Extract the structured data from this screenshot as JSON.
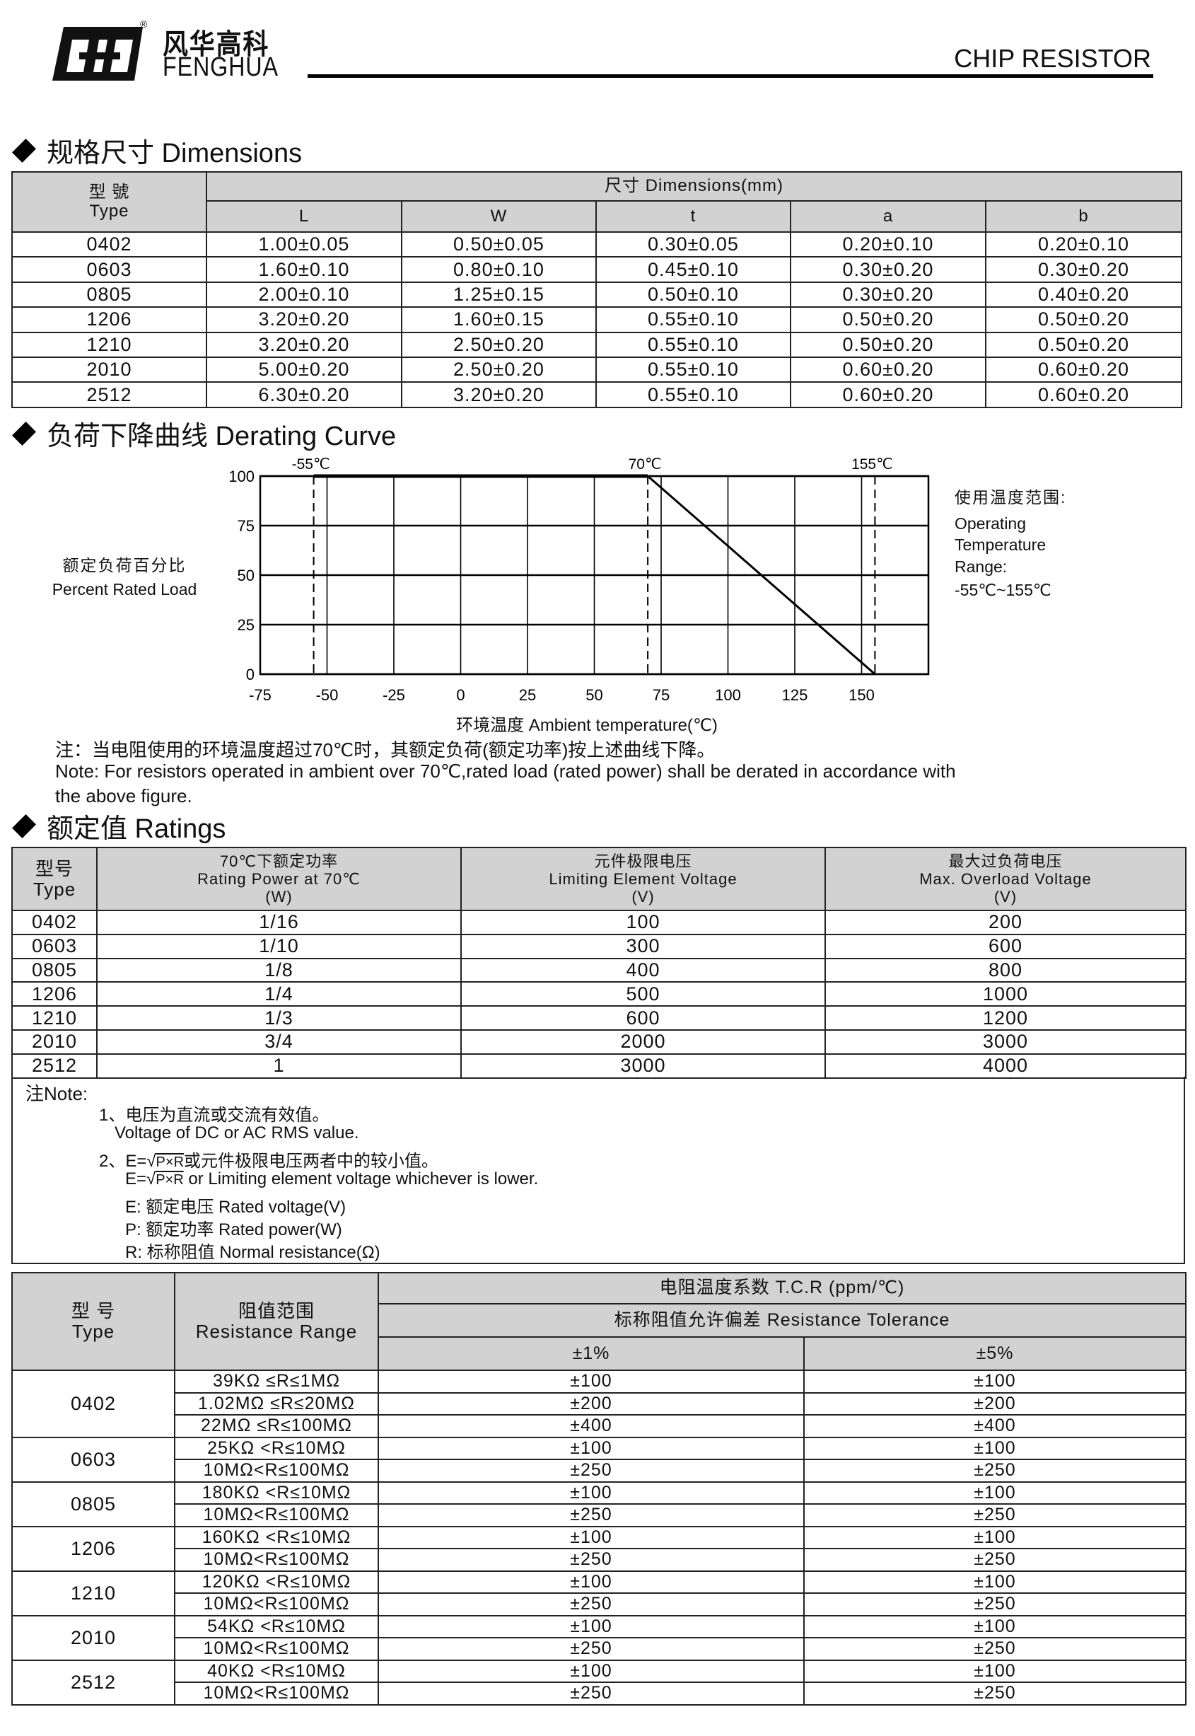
{
  "header": {
    "logo_cn": "风华高科",
    "logo_en": "FENGHUA",
    "logo_mark": "®",
    "title": "CHIP RESISTOR"
  },
  "dimensions": {
    "heading": "规格尺寸 Dimensions",
    "type_header_cn": "型 號",
    "type_header_en": "Type",
    "group_header": "尺寸 Dimensions(mm)",
    "columns": [
      "L",
      "W",
      "t",
      "a",
      "b"
    ],
    "rows": [
      [
        "0402",
        "1.00±0.05",
        "0.50±0.05",
        "0.30±0.05",
        "0.20±0.10",
        "0.20±0.10"
      ],
      [
        "0603",
        "1.60±0.10",
        "0.80±0.10",
        "0.45±0.10",
        "0.30±0.20",
        "0.30±0.20"
      ],
      [
        "0805",
        "2.00±0.10",
        "1.25±0.15",
        "0.50±0.10",
        "0.30±0.20",
        "0.40±0.20"
      ],
      [
        "1206",
        "3.20±0.20",
        "1.60±0.15",
        "0.55±0.10",
        "0.50±0.20",
        "0.50±0.20"
      ],
      [
        "1210",
        "3.20±0.20",
        "2.50±0.20",
        "0.55±0.10",
        "0.50±0.20",
        "0.50±0.20"
      ],
      [
        "2010",
        "5.00±0.20",
        "2.50±0.20",
        "0.55±0.10",
        "0.60±0.20",
        "0.60±0.20"
      ],
      [
        "2512",
        "6.30±0.20",
        "3.20±0.20",
        "0.55±0.10",
        "0.60±0.20",
        "0.60±0.20"
      ]
    ]
  },
  "derating": {
    "heading": "负荷下降曲线 Derating Curve",
    "ylabel_cn": "额定负荷百分比",
    "ylabel_en": "Percent Rated Load",
    "xlabel": "环境温度  Ambient temperature(℃)",
    "range_title": "使用温度范围:",
    "range_lines": [
      "Operating",
      "Temperature",
      "Range:"
    ],
    "range_value": "-55℃~155℃",
    "note_cn": "注：当电阻使用的环境温度超过70℃时，其额定负荷(额定功率)按上述曲线下降。",
    "note_en_1": "Note: For resistors operated in ambient over 70℃,rated  load (rated power) shall be derated in accordance with",
    "note_en_2": "the above figure."
  },
  "chart_data": {
    "type": "line",
    "xlabel": "环境温度  Ambient temperature(℃)",
    "ylabel": "额定负荷百分比 Percent Rated Load",
    "xlim": [
      -75,
      175
    ],
    "ylim": [
      0,
      100
    ],
    "x_ticks": [
      -75,
      -50,
      -25,
      0,
      25,
      50,
      75,
      100,
      125,
      150
    ],
    "y_ticks": [
      0,
      25,
      50,
      75,
      100
    ],
    "grid": true,
    "series": [
      {
        "x": [
          -55,
          70,
          155
        ],
        "y": [
          100,
          100,
          0
        ]
      }
    ],
    "markers": [
      {
        "x": -55,
        "label": "-55℃"
      },
      {
        "x": 70,
        "label": "70℃"
      },
      {
        "x": 155,
        "label": "155℃"
      }
    ]
  },
  "ratings": {
    "heading": "额定值  Ratings",
    "headers": [
      [
        "型号",
        "Type"
      ],
      [
        "70℃下额定功率",
        "Rating Power  at 70℃",
        "(W)"
      ],
      [
        "元件极限电压",
        "Limiting Element  Voltage",
        "(V)"
      ],
      [
        "最大过负荷电压",
        "Max. Overload Voltage",
        "(V)"
      ]
    ],
    "rows": [
      [
        "0402",
        "1/16",
        "100",
        "200"
      ],
      [
        "0603",
        "1/10",
        "300",
        "600"
      ],
      [
        "0805",
        "1/8",
        "400",
        "800"
      ],
      [
        "1206",
        "1/4",
        "500",
        "1000"
      ],
      [
        "1210",
        "1/3",
        "600",
        "1200"
      ],
      [
        "2010",
        "3/4",
        "2000",
        "3000"
      ],
      [
        "2512",
        "1",
        "3000",
        "4000"
      ]
    ],
    "notes": {
      "title": "注Note:",
      "n1_cn": "1、电压为直流或交流有效值。",
      "n1_en": "Voltage of DC or AC RMS value.",
      "n2_prefix": "2、E=",
      "sqrt": "√",
      "radicand": "P×R",
      "n2_cn": "或元件极限电压两者中的较小值。",
      "n2_en_prefix": "E=",
      "n2_en": " or Limiting element voltage whichever is lower.",
      "e_def": "E:  额定电压 Rated voltage(V)",
      "p_def": "P:  额定功率 Rated power(W)",
      "r_def": "R:  标称阻值  Normal resistance(Ω)"
    }
  },
  "tcr": {
    "type_cn": "型 号",
    "type_en": "Type",
    "range_cn": "阻值范围",
    "range_en": "Resistance Range",
    "tcr_header": "电阻温度系数  T.C.R (ppm/℃)",
    "tol_header": "标称阻值允许偏差   Resistance Tolerance",
    "tol_cols": [
      "±1%",
      "±5%"
    ],
    "groups": [
      {
        "type": "0402",
        "rows": [
          [
            "39KΩ ≤R≤1MΩ",
            "±100",
            "±100"
          ],
          [
            "1.02MΩ ≤R≤20MΩ",
            "±200",
            "±200"
          ],
          [
            "22MΩ ≤R≤100MΩ",
            "±400",
            "±400"
          ]
        ]
      },
      {
        "type": "0603",
        "rows": [
          [
            "25KΩ <R≤10MΩ",
            "±100",
            "±100"
          ],
          [
            "10MΩ<R≤100MΩ",
            "±250",
            "±250"
          ]
        ]
      },
      {
        "type": "0805",
        "rows": [
          [
            "180KΩ <R≤10MΩ",
            "±100",
            "±100"
          ],
          [
            "10MΩ<R≤100MΩ",
            "±250",
            "±250"
          ]
        ]
      },
      {
        "type": "1206",
        "rows": [
          [
            "160KΩ <R≤10MΩ",
            "±100",
            "±100"
          ],
          [
            "10MΩ<R≤100MΩ",
            "±250",
            "±250"
          ]
        ]
      },
      {
        "type": "1210",
        "rows": [
          [
            "120KΩ <R≤10MΩ",
            "±100",
            "±100"
          ],
          [
            "10MΩ<R≤100MΩ",
            "±250",
            "±250"
          ]
        ]
      },
      {
        "type": "2010",
        "rows": [
          [
            "54KΩ <R≤10MΩ",
            "±100",
            "±100"
          ],
          [
            "10MΩ<R≤100MΩ",
            "±250",
            "±250"
          ]
        ]
      },
      {
        "type": "2512",
        "rows": [
          [
            "40KΩ <R≤10MΩ",
            "±100",
            "±100"
          ],
          [
            "10MΩ<R≤100MΩ",
            "±250",
            "±250"
          ]
        ]
      }
    ]
  }
}
